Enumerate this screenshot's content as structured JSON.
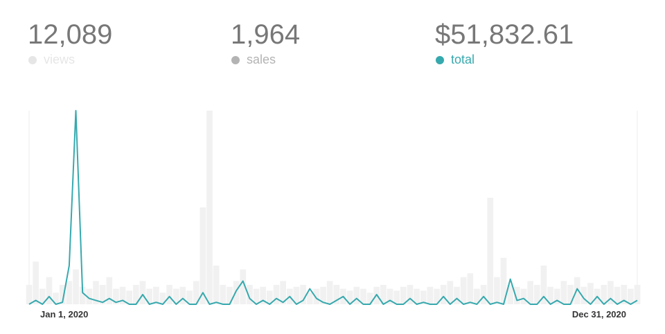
{
  "stats": [
    {
      "value": "12,089",
      "label": "views",
      "color": "#e6e6e6"
    },
    {
      "value": "1,964",
      "label": "sales",
      "color": "#b3b3b3"
    },
    {
      "value": "$51,832.61",
      "label": "total",
      "color": "#36a9ae"
    }
  ],
  "chart_data": {
    "type": "bar-line",
    "categories": [
      "Jan 1, 2020",
      null,
      null,
      null,
      null,
      null,
      null,
      null,
      null,
      null,
      null,
      null,
      null,
      null,
      null,
      null,
      null,
      null,
      null,
      null,
      null,
      null,
      null,
      null,
      null,
      null,
      null,
      null,
      null,
      null,
      null,
      null,
      null,
      null,
      null,
      null,
      null,
      null,
      null,
      null,
      null,
      null,
      null,
      null,
      null,
      null,
      null,
      null,
      null,
      null,
      null,
      null,
      null,
      null,
      null,
      null,
      null,
      null,
      null,
      null,
      null,
      null,
      null,
      null,
      null,
      null,
      null,
      null,
      null,
      null,
      null,
      null,
      null,
      null,
      null,
      null,
      null,
      null,
      null,
      null,
      null,
      null,
      null,
      null,
      null,
      null,
      null,
      null,
      null,
      null,
      null,
      "Dec 31, 2020"
    ],
    "series": [
      {
        "type": "bar",
        "color": "#f1f1f1",
        "values": [
          10,
          22,
          8,
          14,
          6,
          10,
          12,
          18,
          9,
          8,
          12,
          10,
          14,
          8,
          9,
          7,
          10,
          12,
          8,
          9,
          6,
          10,
          8,
          9,
          7,
          12,
          50,
          100,
          20,
          10,
          9,
          12,
          18,
          10,
          8,
          9,
          7,
          10,
          12,
          8,
          9,
          10,
          6,
          8,
          9,
          12,
          10,
          8,
          7,
          9,
          8,
          6,
          9,
          10,
          8,
          7,
          9,
          10,
          8,
          7,
          9,
          8,
          10,
          12,
          9,
          14,
          16,
          8,
          10,
          55,
          14,
          24,
          10,
          9,
          8,
          12,
          10,
          20,
          9,
          8,
          12,
          10,
          14,
          9,
          11,
          8,
          10,
          12,
          9,
          10,
          8,
          10
        ]
      },
      {
        "type": "line",
        "color": "#36a9ae",
        "values": [
          0,
          2,
          0,
          4,
          0,
          1,
          20,
          100,
          6,
          3,
          2,
          1,
          3,
          1,
          2,
          0,
          0,
          5,
          0,
          1,
          0,
          4,
          0,
          3,
          0,
          0,
          6,
          0,
          1,
          0,
          0,
          7,
          12,
          3,
          0,
          2,
          0,
          3,
          1,
          4,
          0,
          2,
          8,
          3,
          1,
          0,
          2,
          4,
          0,
          3,
          0,
          0,
          5,
          0,
          2,
          0,
          0,
          3,
          0,
          1,
          0,
          0,
          4,
          0,
          3,
          0,
          1,
          0,
          4,
          0,
          1,
          0,
          13,
          2,
          3,
          0,
          0,
          4,
          0,
          2,
          0,
          0,
          8,
          3,
          0,
          4,
          0,
          3,
          0,
          2,
          0,
          2
        ]
      }
    ]
  }
}
